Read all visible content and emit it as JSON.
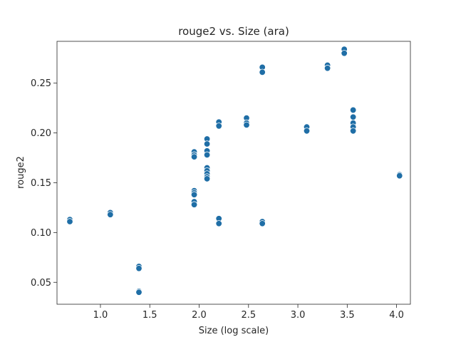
{
  "chart_data": {
    "type": "scatter",
    "title": "rouge2 vs. Size (ara)",
    "xlabel": "Size (log scale)",
    "ylabel": "rouge2",
    "xlim": [
      0.56,
      4.14
    ],
    "ylim": [
      0.028,
      0.292
    ],
    "xticks": [
      1.0,
      1.5,
      2.0,
      2.5,
      3.0,
      3.5,
      4.0
    ],
    "xtick_labels": [
      "1.0",
      "1.5",
      "2.0",
      "2.5",
      "3.0",
      "3.5",
      "4.0"
    ],
    "yticks": [
      0.05,
      0.1,
      0.15,
      0.2,
      0.25
    ],
    "ytick_labels": [
      "0.05",
      "0.10",
      "0.15",
      "0.20",
      "0.25"
    ],
    "points": [
      {
        "x": 0.69,
        "y": 0.113
      },
      {
        "x": 0.69,
        "y": 0.111
      },
      {
        "x": 1.1,
        "y": 0.12
      },
      {
        "x": 1.1,
        "y": 0.118
      },
      {
        "x": 1.39,
        "y": 0.066
      },
      {
        "x": 1.39,
        "y": 0.064
      },
      {
        "x": 1.39,
        "y": 0.041
      },
      {
        "x": 1.39,
        "y": 0.04
      },
      {
        "x": 1.95,
        "y": 0.181
      },
      {
        "x": 1.95,
        "y": 0.178
      },
      {
        "x": 1.95,
        "y": 0.176
      },
      {
        "x": 1.95,
        "y": 0.142
      },
      {
        "x": 1.95,
        "y": 0.14
      },
      {
        "x": 1.95,
        "y": 0.138
      },
      {
        "x": 1.95,
        "y": 0.131
      },
      {
        "x": 1.95,
        "y": 0.128
      },
      {
        "x": 2.08,
        "y": 0.194
      },
      {
        "x": 2.08,
        "y": 0.189
      },
      {
        "x": 2.08,
        "y": 0.182
      },
      {
        "x": 2.08,
        "y": 0.178
      },
      {
        "x": 2.08,
        "y": 0.165
      },
      {
        "x": 2.08,
        "y": 0.162
      },
      {
        "x": 2.08,
        "y": 0.159
      },
      {
        "x": 2.08,
        "y": 0.156
      },
      {
        "x": 2.08,
        "y": 0.154
      },
      {
        "x": 2.2,
        "y": 0.211
      },
      {
        "x": 2.2,
        "y": 0.207
      },
      {
        "x": 2.2,
        "y": 0.114
      },
      {
        "x": 2.2,
        "y": 0.109
      },
      {
        "x": 2.48,
        "y": 0.215
      },
      {
        "x": 2.48,
        "y": 0.21
      },
      {
        "x": 2.48,
        "y": 0.208
      },
      {
        "x": 2.64,
        "y": 0.266
      },
      {
        "x": 2.64,
        "y": 0.261
      },
      {
        "x": 2.64,
        "y": 0.111
      },
      {
        "x": 2.64,
        "y": 0.109
      },
      {
        "x": 3.09,
        "y": 0.206
      },
      {
        "x": 3.09,
        "y": 0.202
      },
      {
        "x": 3.3,
        "y": 0.268
      },
      {
        "x": 3.3,
        "y": 0.265
      },
      {
        "x": 3.47,
        "y": 0.284
      },
      {
        "x": 3.47,
        "y": 0.28
      },
      {
        "x": 3.56,
        "y": 0.223
      },
      {
        "x": 3.56,
        "y": 0.216
      },
      {
        "x": 3.56,
        "y": 0.21
      },
      {
        "x": 3.56,
        "y": 0.206
      },
      {
        "x": 3.56,
        "y": 0.202
      },
      {
        "x": 4.03,
        "y": 0.158
      },
      {
        "x": 4.03,
        "y": 0.157
      }
    ],
    "color": "#1f6ea6",
    "grid": false
  }
}
